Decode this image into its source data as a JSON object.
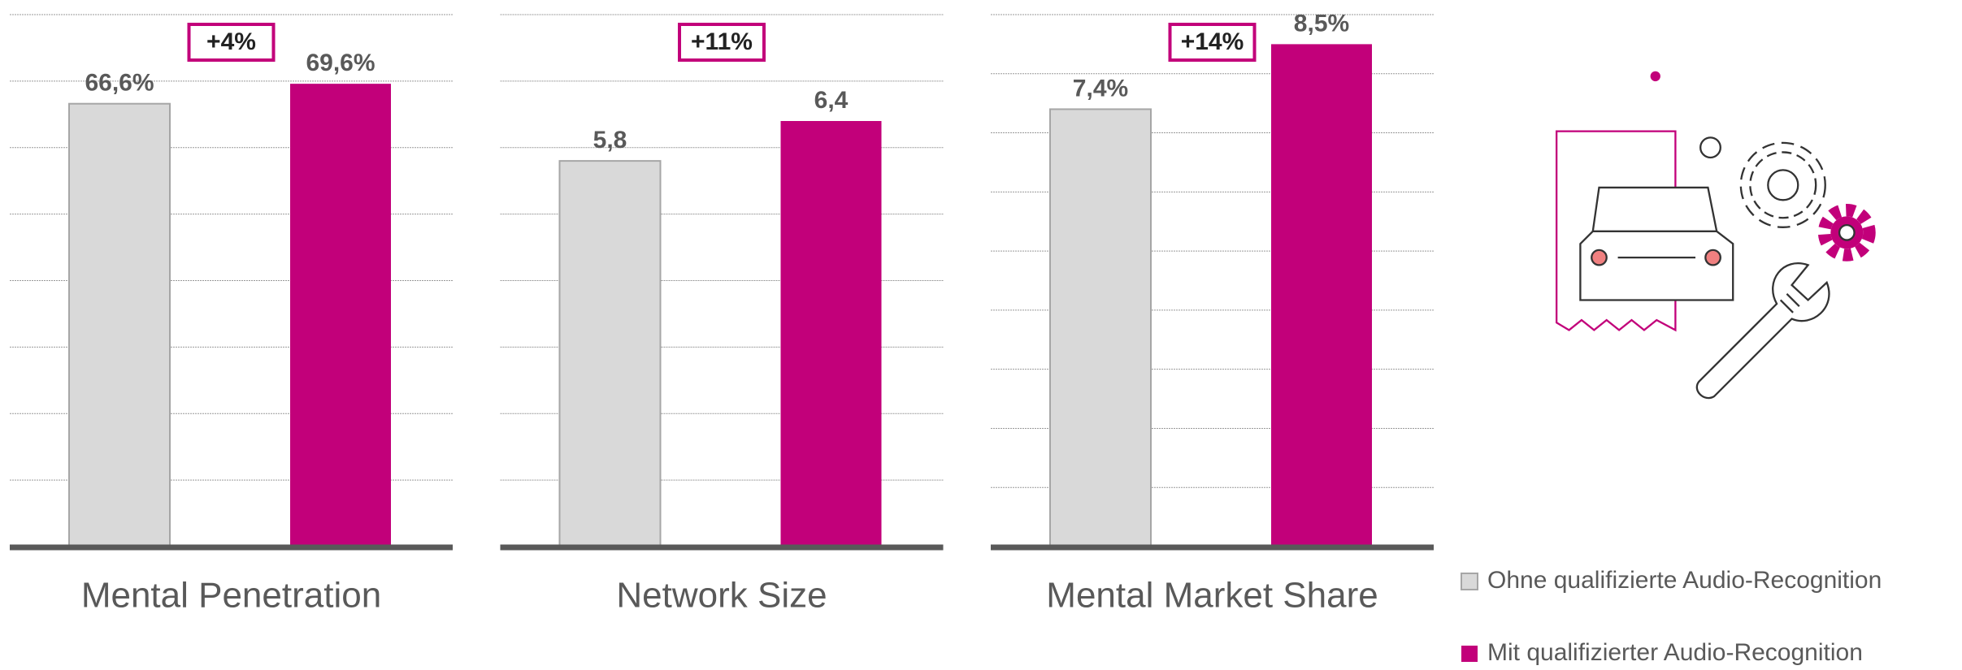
{
  "chart_data": [
    {
      "type": "bar",
      "title": "Mental Penetration",
      "values": [
        66.6,
        69.6
      ],
      "value_labels": [
        "66,6%",
        "69,6%"
      ],
      "annotation": "+4%",
      "ylim": [
        0,
        80
      ],
      "yticks": [
        0,
        10,
        20,
        30,
        40,
        50,
        60,
        70,
        80
      ],
      "grid": true
    },
    {
      "type": "bar",
      "title": "Network Size",
      "values": [
        5.8,
        6.4
      ],
      "value_labels": [
        "5,8",
        "6,4"
      ],
      "annotation": "+11%",
      "ylim": [
        0,
        8
      ],
      "yticks": [
        0,
        1,
        2,
        3,
        4,
        5,
        6,
        7,
        8
      ],
      "grid": true
    },
    {
      "type": "bar",
      "title": "Mental Market Share",
      "values": [
        7.4,
        8.5
      ],
      "value_labels": [
        "7,4%",
        "8,5%"
      ],
      "annotation": "+14%",
      "ylim": [
        0,
        9
      ],
      "yticks": [
        0,
        1,
        2,
        3,
        4,
        5,
        6,
        7,
        8,
        9
      ],
      "grid": true
    }
  ],
  "legend": {
    "series": [
      {
        "name": "Ohne qualifizierte Audio-Recognition",
        "color": "#d9d9d9"
      },
      {
        "name": "Mit qualifizierter Audio-Recognition",
        "color": "#c2007a"
      }
    ]
  }
}
